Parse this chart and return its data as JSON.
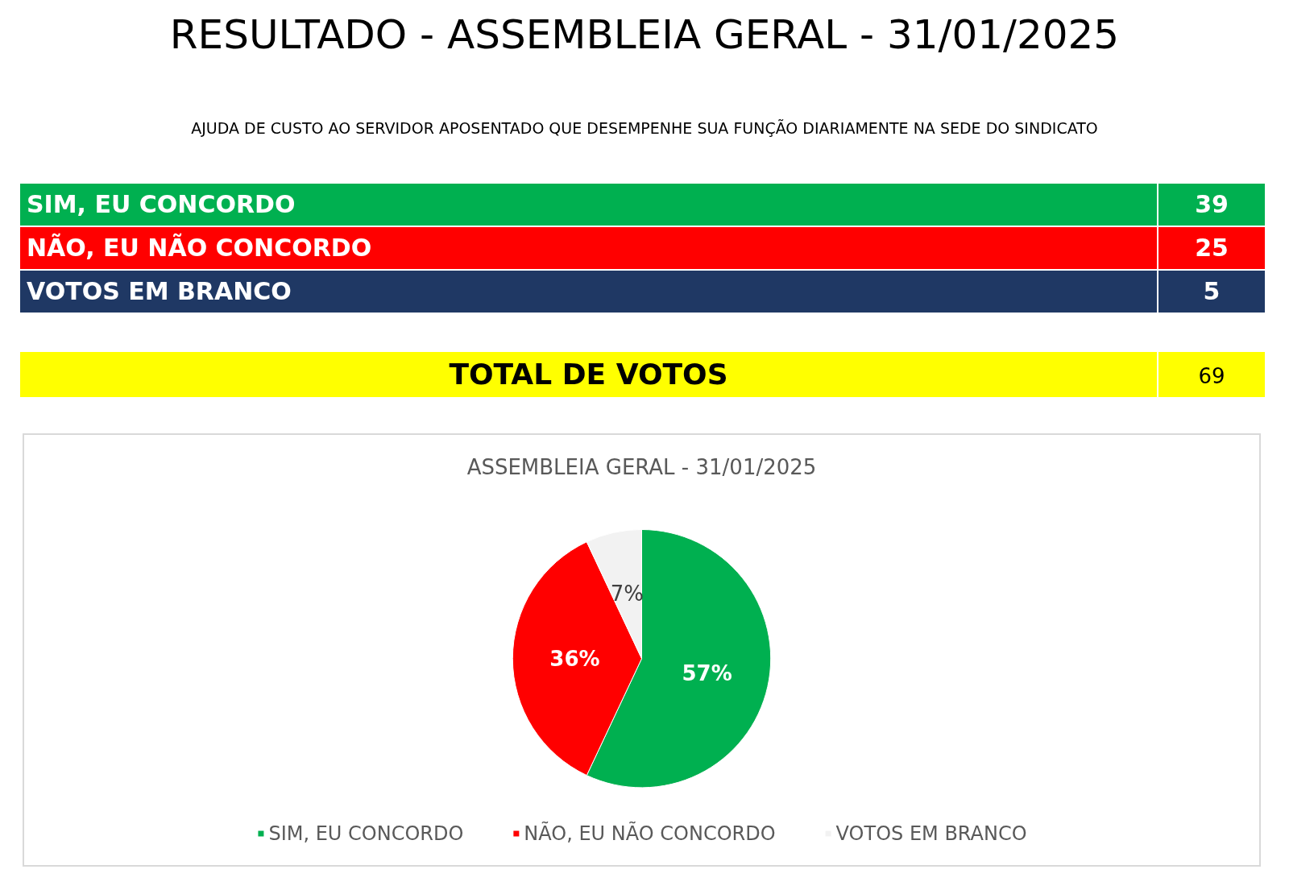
{
  "chart_data": {
    "type": "pie",
    "title": "RESULTADO - ASSEMBLEIA GERAL - 31/01/2025",
    "subtitle": "AJUDA DE CUSTO AO SERVIDOR APOSENTADO QUE DESEMPENHE SUA FUNÇÃO DIARIAMENTE NA SEDE DO SINDICATO",
    "categories": [
      "SIM, EU CONCORDO",
      "NÃO, EU NÃO CONCORDO",
      "VOTOS EM BRANCO"
    ],
    "values": [
      57,
      36,
      7
    ],
    "colors": [
      "#00b050",
      "#ff0000",
      "#f2f2f2"
    ],
    "value_labels": [
      "57%",
      "36%",
      "7%"
    ],
    "annotations": [
      "39",
      "25",
      "5",
      "TOTAL DE VOTOS",
      "69",
      "ASSEMBLEIA GERAL - 31/01/2025"
    ],
    "legend": "bottom"
  }
}
